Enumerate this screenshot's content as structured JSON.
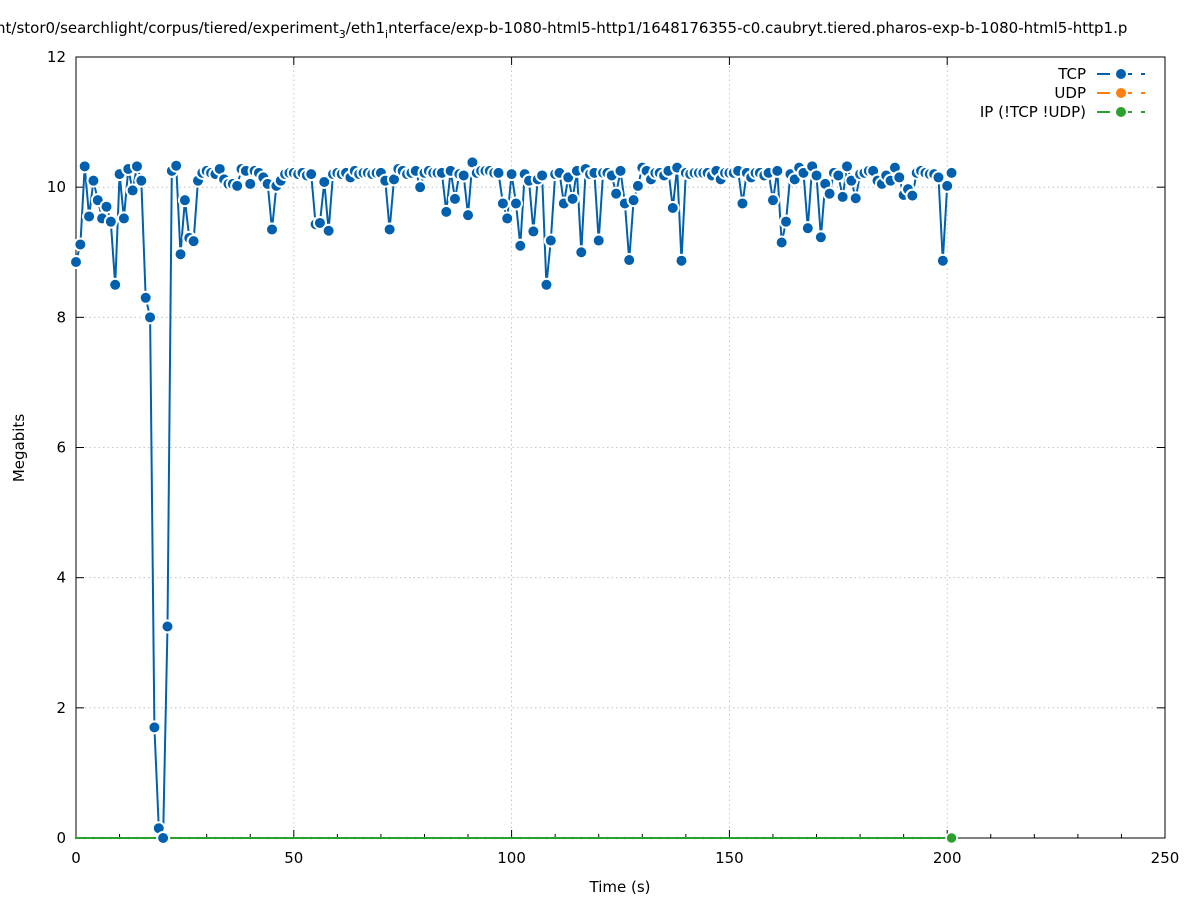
{
  "chart_data": {
    "type": "line",
    "title": "nt/stor0/searchlight/corpus/tiered/experiment",
    "title_sub1": "3",
    "title_mid": "/eth1",
    "title_sub2": "i",
    "title_tail": "nterface/exp-b-1080-html5-http1/1648176355-c0.caubryt.tiered.pharos-exp-b-1080-html5-http1.p",
    "xlabel": "Time (s)",
    "ylabel": "Megabits",
    "xlim": [
      0,
      250
    ],
    "ylim": [
      0,
      12
    ],
    "xticks": [
      "0",
      "50",
      "100",
      "150",
      "200",
      "250"
    ],
    "yticks": [
      "0",
      "2",
      "4",
      "6",
      "8",
      "10",
      "12"
    ],
    "grid": true,
    "legend_position": "top-right",
    "series": [
      {
        "name": "TCP",
        "color": "#0060ad",
        "x": [
          0,
          1,
          2,
          3,
          4,
          5,
          6,
          7,
          8,
          9,
          10,
          11,
          12,
          13,
          14,
          15,
          16,
          17,
          18,
          19,
          20,
          21,
          22,
          23,
          24,
          25,
          26,
          27,
          28,
          29,
          30,
          31,
          32,
          33,
          34,
          35,
          36,
          37,
          38,
          39,
          40,
          41,
          42,
          43,
          44,
          45,
          46,
          47,
          48,
          49,
          50,
          51,
          52,
          53,
          54,
          55,
          56,
          57,
          58,
          59,
          60,
          61,
          62,
          63,
          64,
          65,
          66,
          67,
          68,
          69,
          70,
          71,
          72,
          73,
          74,
          75,
          76,
          77,
          78,
          79,
          80,
          81,
          82,
          83,
          84,
          85,
          86,
          87,
          88,
          89,
          90,
          91,
          92,
          93,
          94,
          95,
          96,
          97,
          98,
          99,
          100,
          101,
          102,
          103,
          104,
          105,
          106,
          107,
          108,
          109,
          110,
          111,
          112,
          113,
          114,
          115,
          116,
          117,
          118,
          119,
          120,
          121,
          122,
          123,
          124,
          125,
          126,
          127,
          128,
          129,
          130,
          131,
          132,
          133,
          134,
          135,
          136,
          137,
          138,
          139,
          140,
          141,
          142,
          143,
          144,
          145,
          146,
          147,
          148,
          149,
          150,
          151,
          152,
          153,
          154,
          155,
          156,
          157,
          158,
          159,
          160,
          161,
          162,
          163,
          164,
          165,
          166,
          167,
          168,
          169,
          170,
          171,
          172,
          173,
          174,
          175,
          176,
          177,
          178,
          179,
          180,
          181,
          182,
          183,
          184,
          185,
          186,
          187,
          188,
          189,
          190,
          191,
          192,
          193,
          194,
          195,
          196,
          197,
          198,
          199,
          200,
          201
        ],
        "values": [
          8.85,
          9.12,
          10.32,
          9.55,
          10.1,
          9.8,
          9.52,
          9.7,
          9.47,
          8.5,
          10.2,
          9.52,
          10.28,
          9.95,
          10.32,
          10.1,
          8.3,
          8.0,
          1.7,
          0.15,
          0.0,
          3.25,
          10.25,
          10.33,
          8.97,
          9.8,
          9.22,
          9.17,
          10.1,
          10.22,
          10.25,
          10.22,
          10.2,
          10.28,
          10.12,
          10.05,
          10.05,
          10.02,
          10.28,
          10.25,
          10.05,
          10.25,
          10.22,
          10.15,
          10.05,
          9.35,
          10.02,
          10.1,
          10.2,
          10.22,
          10.22,
          10.2,
          10.22,
          10.18,
          10.2,
          9.43,
          9.45,
          10.08,
          9.33,
          10.2,
          10.22,
          10.2,
          10.22,
          10.15,
          10.25,
          10.2,
          10.22,
          10.22,
          10.2,
          10.22,
          10.22,
          10.1,
          9.35,
          10.12,
          10.28,
          10.25,
          10.2,
          10.22,
          10.25,
          10.0,
          10.22,
          10.25,
          10.22,
          10.22,
          10.22,
          9.62,
          10.25,
          9.82,
          10.2,
          10.18,
          9.57,
          10.38,
          10.22,
          10.25,
          10.25,
          10.25,
          10.22,
          10.22,
          9.75,
          9.52,
          10.2,
          9.75,
          9.1,
          10.2,
          10.1,
          9.32,
          10.12,
          10.18,
          8.5,
          9.18,
          10.2,
          10.22,
          9.75,
          10.15,
          9.82,
          10.25,
          9.0,
          10.28,
          10.2,
          10.22,
          9.18,
          10.22,
          10.22,
          10.18,
          9.9,
          10.25,
          9.75,
          8.88,
          9.8,
          10.02,
          10.3,
          10.25,
          10.12,
          10.22,
          10.22,
          10.18,
          10.25,
          9.68,
          10.3,
          8.87,
          10.22,
          10.2,
          10.22,
          10.22,
          10.22,
          10.22,
          10.18,
          10.25,
          10.12,
          10.22,
          10.22,
          10.22,
          10.25,
          9.75,
          10.22,
          10.15,
          10.22,
          10.22,
          10.18,
          10.22,
          9.8,
          10.25,
          9.15,
          9.47,
          10.2,
          10.12,
          10.3,
          10.22,
          9.37,
          10.32,
          10.18,
          9.23,
          10.05,
          9.9,
          10.22,
          10.18,
          9.85,
          10.32,
          10.1,
          9.83,
          10.2,
          10.22,
          10.25,
          10.25,
          10.1,
          10.05,
          10.18,
          10.1,
          10.3,
          10.15,
          9.88,
          9.97,
          9.87,
          10.22,
          10.25,
          10.22,
          10.2,
          10.2,
          10.15,
          8.87,
          10.02,
          10.22
        ]
      },
      {
        "name": "UDP",
        "color": "#ff7f0e",
        "x": [],
        "values": []
      },
      {
        "name": "IP (!TCP  !UDP)",
        "color": "#2ca02c",
        "x": [
          0,
          2,
          4,
          6,
          8,
          10,
          12,
          14,
          16,
          18,
          20,
          22,
          24,
          26,
          28,
          30,
          32,
          34,
          36,
          38,
          40,
          42,
          44,
          46,
          48,
          50,
          52,
          54,
          56,
          58,
          60,
          62,
          64,
          66,
          68,
          70,
          72,
          74,
          76,
          78,
          80,
          82,
          84,
          86,
          88,
          90,
          92,
          94,
          96,
          98,
          100,
          102,
          104,
          106,
          108,
          110,
          112,
          114,
          116,
          118,
          120,
          122,
          124,
          126,
          128,
          130,
          132,
          134,
          136,
          138,
          140,
          142,
          144,
          146,
          148,
          150,
          152,
          154,
          156,
          158,
          160,
          162,
          164,
          166,
          168,
          170,
          172,
          174,
          176,
          178,
          180,
          182,
          184,
          186,
          188,
          190,
          192,
          194,
          196,
          198,
          200,
          201
        ],
        "values": [
          0,
          0,
          0,
          0,
          0,
          0,
          0,
          0,
          0,
          0,
          0,
          0,
          0,
          0,
          0,
          0,
          0,
          0,
          0,
          0,
          0,
          0,
          0,
          0,
          0,
          0,
          0,
          0,
          0,
          0,
          0,
          0,
          0,
          0,
          0,
          0,
          0,
          0,
          0,
          0,
          0,
          0,
          0,
          0,
          0,
          0,
          0,
          0,
          0,
          0,
          0,
          0,
          0,
          0,
          0,
          0,
          0,
          0,
          0,
          0,
          0,
          0,
          0,
          0,
          0,
          0,
          0,
          0,
          0,
          0,
          0,
          0,
          0,
          0,
          0,
          0,
          0,
          0,
          0,
          0,
          0,
          0,
          0,
          0,
          0,
          0,
          0,
          0,
          0,
          0,
          0,
          0,
          0,
          0,
          0,
          0,
          0,
          0,
          0,
          0,
          0,
          0
        ]
      }
    ]
  }
}
